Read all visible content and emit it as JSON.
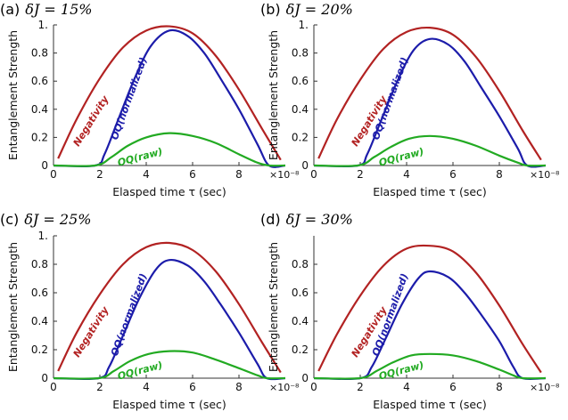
{
  "chart_data": [
    {
      "type": "line",
      "panel_letter": "(a)",
      "title": "δJ = 15%",
      "xlabel": "Elasped time τ (sec)",
      "ylabel": "Entanglement Strength",
      "x_multiplier": "×10⁻⁸",
      "xlim": [
        0,
        10
      ],
      "ylim": [
        0,
        1
      ],
      "xticks": [
        "0",
        "2",
        "4",
        "6",
        "8"
      ],
      "yticks": [
        "0",
        "0.2",
        "0.4",
        "0.6",
        "0.8",
        "1."
      ],
      "series": [
        {
          "name": "Negativity",
          "color": "#b22222",
          "x": [
            0.2,
            1,
            2,
            3,
            4,
            5,
            6,
            7,
            8,
            9,
            9.8
          ],
          "y": [
            0.05,
            0.33,
            0.62,
            0.84,
            0.96,
            0.99,
            0.94,
            0.78,
            0.54,
            0.26,
            0.04
          ]
        },
        {
          "name": "OQ(normalized)",
          "color": "#1c1caa",
          "x": [
            0,
            1.8,
            2.2,
            2.8,
            3.5,
            4.2,
            5.0,
            5.8,
            6.5,
            7.2,
            8.0,
            8.8,
            9.3,
            10
          ],
          "y": [
            0,
            0,
            0.08,
            0.33,
            0.62,
            0.85,
            0.96,
            0.92,
            0.8,
            0.62,
            0.4,
            0.15,
            0,
            0
          ]
        },
        {
          "name": "OQ(raw)",
          "color": "#22aa22",
          "x": [
            0,
            1.8,
            2.5,
            3.2,
            4.0,
            5.0,
            6.0,
            7.0,
            8.0,
            8.8,
            9.3,
            10
          ],
          "y": [
            0,
            0,
            0.06,
            0.14,
            0.2,
            0.23,
            0.21,
            0.16,
            0.08,
            0.02,
            0,
            0
          ]
        }
      ]
    },
    {
      "type": "line",
      "panel_letter": "(b)",
      "title": "δJ = 20%",
      "xlabel": "Elasped time τ (sec)",
      "ylabel": "Entanglement Strength",
      "x_multiplier": "×10⁻⁸",
      "xlim": [
        0,
        10
      ],
      "ylim": [
        0,
        1
      ],
      "xticks": [
        "0",
        "2",
        "4",
        "6",
        "8"
      ],
      "yticks": [
        "0",
        "0.2",
        "0.4",
        "0.6",
        "0.8",
        "1."
      ],
      "series": [
        {
          "name": "Negativity",
          "color": "#b22222",
          "x": [
            0.2,
            1,
            2,
            3,
            4,
            5,
            6,
            7,
            8,
            9,
            9.8
          ],
          "y": [
            0.05,
            0.33,
            0.61,
            0.83,
            0.95,
            0.98,
            0.93,
            0.77,
            0.53,
            0.25,
            0.04
          ]
        },
        {
          "name": "OQ(normalized)",
          "color": "#1c1caa",
          "x": [
            0,
            1.9,
            2.3,
            2.9,
            3.6,
            4.3,
            5.0,
            5.8,
            6.5,
            7.2,
            8.0,
            8.8,
            9.2,
            10
          ],
          "y": [
            0,
            0,
            0.08,
            0.32,
            0.6,
            0.82,
            0.9,
            0.86,
            0.74,
            0.56,
            0.35,
            0.12,
            0,
            0
          ]
        },
        {
          "name": "OQ(raw)",
          "color": "#22aa22",
          "x": [
            0,
            1.9,
            2.6,
            3.3,
            4.1,
            5.0,
            6.0,
            7.0,
            8.0,
            8.8,
            9.2,
            10
          ],
          "y": [
            0,
            0,
            0.06,
            0.13,
            0.19,
            0.21,
            0.19,
            0.14,
            0.07,
            0.02,
            0,
            0
          ]
        }
      ]
    },
    {
      "type": "line",
      "panel_letter": "(c)",
      "title": "δJ = 25%",
      "xlabel": "Elasped time τ (sec)",
      "ylabel": "Entanglement Strength",
      "x_multiplier": "×10⁻⁸",
      "xlim": [
        0,
        10
      ],
      "ylim": [
        0,
        1
      ],
      "xticks": [
        "0",
        "2",
        "4",
        "6",
        "8"
      ],
      "yticks": [
        "0",
        "0.2",
        "0.4",
        "0.6",
        "0.8",
        "1."
      ],
      "series": [
        {
          "name": "Negativity",
          "color": "#b22222",
          "x": [
            0.2,
            1,
            2,
            3,
            4,
            5,
            6,
            7,
            8,
            9,
            9.8
          ],
          "y": [
            0.05,
            0.32,
            0.59,
            0.8,
            0.92,
            0.95,
            0.9,
            0.75,
            0.52,
            0.25,
            0.04
          ]
        },
        {
          "name": "OQ(normalized)",
          "color": "#1c1caa",
          "x": [
            0,
            1.95,
            2.4,
            3.0,
            3.7,
            4.4,
            5.0,
            5.8,
            6.5,
            7.2,
            8.0,
            8.8,
            9.2,
            10
          ],
          "y": [
            0,
            0,
            0.08,
            0.3,
            0.56,
            0.76,
            0.83,
            0.79,
            0.68,
            0.52,
            0.32,
            0.1,
            0,
            0
          ]
        },
        {
          "name": "OQ(raw)",
          "color": "#22aa22",
          "x": [
            0,
            1.95,
            2.6,
            3.3,
            4.1,
            5.0,
            6.0,
            7.0,
            8.0,
            8.8,
            9.2,
            10
          ],
          "y": [
            0,
            0,
            0.05,
            0.12,
            0.17,
            0.19,
            0.18,
            0.13,
            0.07,
            0.02,
            0,
            0
          ]
        }
      ]
    },
    {
      "type": "line",
      "panel_letter": "(d)",
      "title": "δJ = 30%",
      "xlabel": "Elasped time τ (sec)",
      "ylabel": "Entanglement Strength",
      "x_multiplier": "×10⁻⁸",
      "xlim": [
        0,
        10
      ],
      "ylim": [
        0,
        1
      ],
      "xticks": [
        "0",
        "2",
        "4",
        "6",
        "8"
      ],
      "yticks": [
        "0",
        "0.2",
        "0.4",
        "0.6",
        "0.8"
      ],
      "series": [
        {
          "name": "Negativity",
          "color": "#b22222",
          "x": [
            0.2,
            1,
            2,
            3,
            4,
            5,
            6,
            7,
            8,
            9,
            9.8
          ],
          "y": [
            0.05,
            0.31,
            0.58,
            0.79,
            0.91,
            0.93,
            0.89,
            0.74,
            0.51,
            0.24,
            0.04
          ]
        },
        {
          "name": "OQ(normalized)",
          "color": "#1c1caa",
          "x": [
            0,
            2.0,
            2.5,
            3.1,
            3.8,
            4.5,
            5.0,
            5.8,
            6.5,
            7.2,
            8.0,
            8.6,
            9.0,
            10
          ],
          "y": [
            0,
            0,
            0.08,
            0.28,
            0.52,
            0.7,
            0.75,
            0.71,
            0.6,
            0.45,
            0.26,
            0.08,
            0,
            0
          ]
        },
        {
          "name": "OQ(raw)",
          "color": "#22aa22",
          "x": [
            0,
            2.0,
            2.7,
            3.4,
            4.2,
            5.0,
            6.0,
            7.0,
            8.0,
            8.6,
            9.0,
            10
          ],
          "y": [
            0,
            0,
            0.05,
            0.11,
            0.16,
            0.17,
            0.16,
            0.12,
            0.06,
            0.02,
            0,
            0
          ]
        }
      ]
    }
  ]
}
